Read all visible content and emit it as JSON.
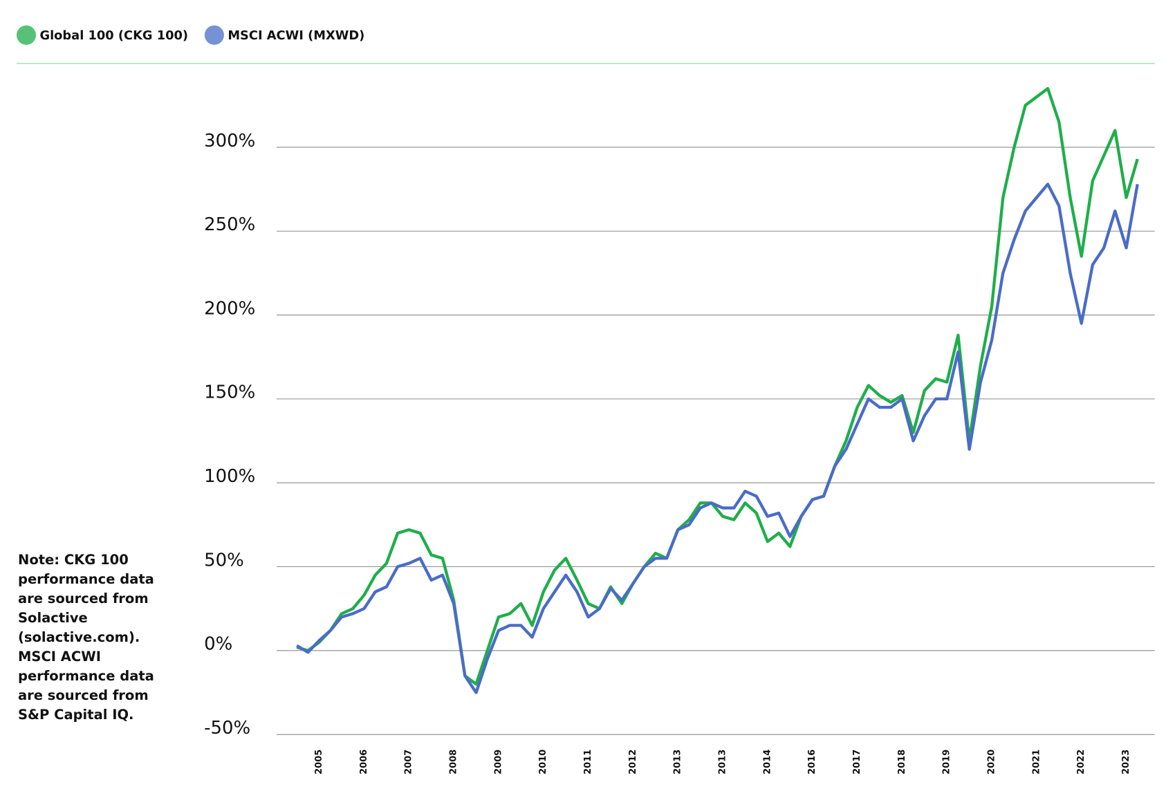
{
  "chart_data": {
    "type": "line",
    "note": "Note: CKG 100 performance data are sourced from Solactive (solactive.com). MSCI ACWI performance data are sourced from S&P Capital IQ.",
    "categories": [
      null,
      null,
      "2005",
      null,
      null,
      null,
      "2006",
      null,
      null,
      null,
      "2007",
      null,
      null,
      null,
      "2008",
      null,
      null,
      null,
      "2009",
      null,
      null,
      null,
      "2010",
      null,
      null,
      null,
      "2011",
      null,
      null,
      null,
      "2012",
      null,
      null,
      null,
      "2013",
      null,
      null,
      null,
      "2013",
      null,
      null,
      null,
      "2014",
      null,
      null,
      null,
      "2016",
      null,
      null,
      null,
      "2017",
      null,
      null,
      null,
      "2018",
      null,
      null,
      null,
      "2019",
      null,
      null,
      null,
      "2020",
      null,
      null,
      null,
      "2021",
      null,
      null,
      null,
      "2022",
      null,
      null,
      null,
      "2023",
      null
    ],
    "series": [
      {
        "name": "Global 100 (CKG 100)",
        "color": "#1fae4a",
        "values": [
          2,
          0,
          5,
          12,
          22,
          25,
          33,
          45,
          52,
          70,
          72,
          70,
          57,
          55,
          30,
          -15,
          -20,
          0,
          20,
          22,
          28,
          15,
          35,
          48,
          55,
          42,
          28,
          25,
          38,
          28,
          40,
          50,
          58,
          55,
          72,
          78,
          88,
          88,
          80,
          78,
          88,
          82,
          65,
          70,
          62,
          80,
          90,
          92,
          110,
          125,
          145,
          158,
          152,
          148,
          152,
          130,
          155,
          162,
          160,
          188,
          125,
          170,
          205,
          270,
          300,
          325,
          330,
          335,
          315,
          270,
          235,
          280,
          295,
          310,
          270,
          293
        ]
      },
      {
        "name": "MSCI ACWI (MXWD)",
        "color": "#4a6cc7",
        "values": [
          3,
          -1,
          6,
          12,
          20,
          22,
          25,
          35,
          38,
          50,
          52,
          55,
          42,
          45,
          28,
          -15,
          -25,
          -5,
          12,
          15,
          15,
          8,
          25,
          35,
          45,
          35,
          20,
          25,
          37,
          30,
          40,
          50,
          55,
          55,
          72,
          75,
          85,
          88,
          85,
          85,
          95,
          92,
          80,
          82,
          68,
          80,
          90,
          92,
          110,
          120,
          135,
          150,
          145,
          145,
          150,
          125,
          140,
          150,
          150,
          178,
          120,
          160,
          185,
          225,
          245,
          262,
          270,
          278,
          265,
          225,
          195,
          230,
          240,
          262,
          240,
          278
        ]
      }
    ],
    "ylim": [
      -50,
      345
    ],
    "yticks": [
      {
        "value": -50,
        "label": "-50%"
      },
      {
        "value": 0,
        "label": "0%"
      },
      {
        "value": 50,
        "label": "50%"
      },
      {
        "value": 100,
        "label": "100%"
      },
      {
        "value": 150,
        "label": "150%"
      },
      {
        "value": 200,
        "label": "200%"
      },
      {
        "value": 250,
        "label": "250%"
      },
      {
        "value": 300,
        "label": "300%"
      }
    ],
    "grid": true
  }
}
